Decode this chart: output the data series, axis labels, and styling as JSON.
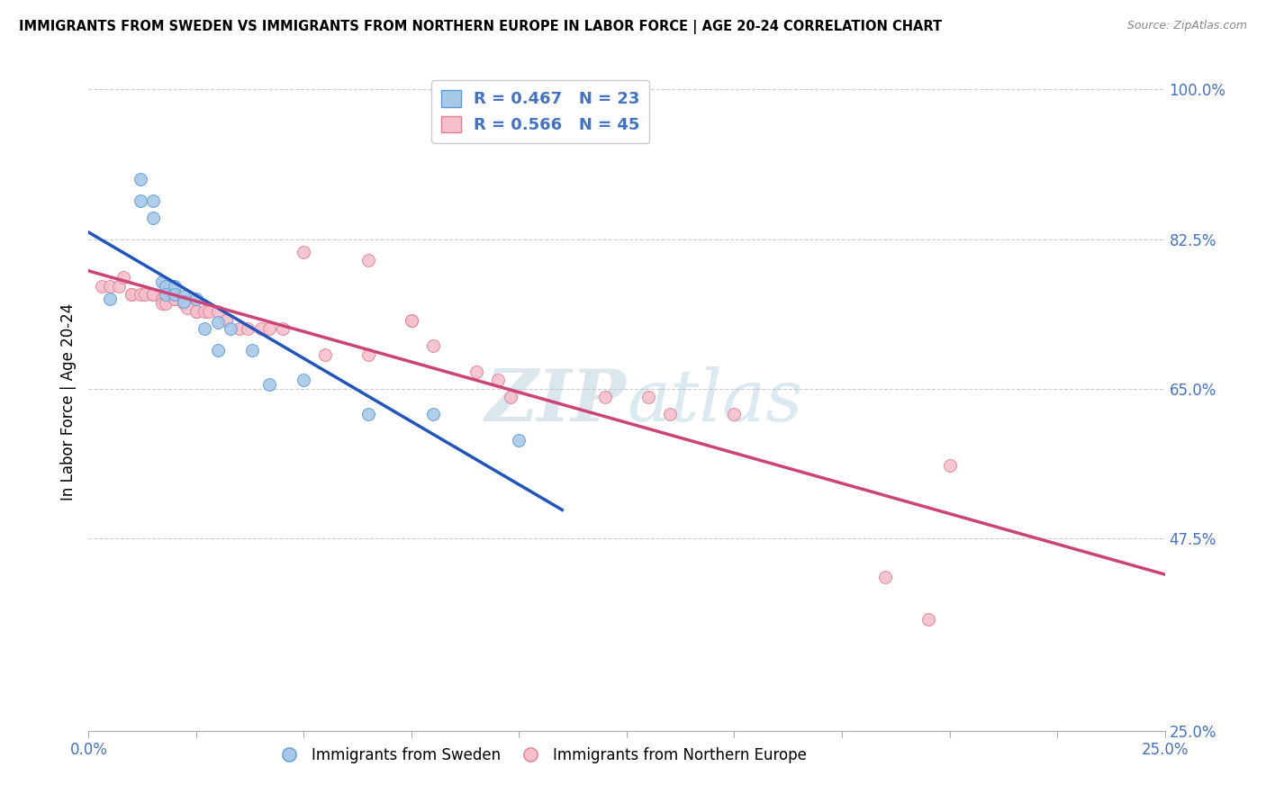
{
  "title": "IMMIGRANTS FROM SWEDEN VS IMMIGRANTS FROM NORTHERN EUROPE IN LABOR FORCE | AGE 20-24 CORRELATION CHART",
  "source": "Source: ZipAtlas.com",
  "ylabel": "In Labor Force | Age 20-24",
  "xlim": [
    0.0,
    0.25
  ],
  "ylim": [
    0.25,
    1.02
  ],
  "yticks": [
    0.25,
    0.475,
    0.65,
    0.825,
    1.0
  ],
  "ytick_labels": [
    "25.0%",
    "47.5%",
    "65.0%",
    "82.5%",
    "100.0%"
  ],
  "xticks": [
    0.0,
    0.025,
    0.05,
    0.075,
    0.1,
    0.125,
    0.15,
    0.175,
    0.2,
    0.225,
    0.25
  ],
  "xtick_labels": [
    "0.0%",
    "",
    "",
    "",
    "",
    "",
    "",
    "",
    "",
    "",
    "25.0%"
  ],
  "sweden_color": "#a8c8e8",
  "sweden_edge_color": "#5b9bd5",
  "northern_europe_color": "#f5c0cc",
  "northern_europe_edge_color": "#e08090",
  "trendline_sweden_color": "#2255bb",
  "trendline_northern_europe_color": "#cc4477",
  "R_sweden": 0.467,
  "N_sweden": 23,
  "R_northern": 0.566,
  "N_northern": 45,
  "watermark_zip": "ZIP",
  "watermark_atlas": "atlas",
  "marker_size": 100,
  "axis_color": "#4472c4",
  "sweden_x": [
    0.005,
    0.012,
    0.012,
    0.015,
    0.015,
    0.017,
    0.018,
    0.018,
    0.02,
    0.02,
    0.022,
    0.022,
    0.025,
    0.027,
    0.03,
    0.03,
    0.033,
    0.038,
    0.042,
    0.05,
    0.065,
    0.08,
    0.1
  ],
  "sweden_y": [
    0.755,
    0.87,
    0.895,
    0.87,
    0.85,
    0.775,
    0.77,
    0.76,
    0.77,
    0.76,
    0.758,
    0.752,
    0.755,
    0.72,
    0.728,
    0.695,
    0.72,
    0.695,
    0.655,
    0.66,
    0.62,
    0.62,
    0.59
  ],
  "northern_x": [
    0.003,
    0.005,
    0.007,
    0.008,
    0.01,
    0.01,
    0.012,
    0.013,
    0.015,
    0.015,
    0.017,
    0.017,
    0.018,
    0.02,
    0.02,
    0.022,
    0.023,
    0.025,
    0.025,
    0.027,
    0.028,
    0.03,
    0.032,
    0.035,
    0.037,
    0.04,
    0.042,
    0.045,
    0.05,
    0.055,
    0.065,
    0.065,
    0.075,
    0.075,
    0.08,
    0.09,
    0.095,
    0.098,
    0.12,
    0.13,
    0.135,
    0.15,
    0.185,
    0.195,
    0.2
  ],
  "northern_y": [
    0.77,
    0.77,
    0.77,
    0.78,
    0.76,
    0.76,
    0.76,
    0.76,
    0.76,
    0.76,
    0.755,
    0.75,
    0.75,
    0.755,
    0.755,
    0.75,
    0.745,
    0.74,
    0.74,
    0.74,
    0.74,
    0.74,
    0.73,
    0.72,
    0.72,
    0.72,
    0.72,
    0.72,
    0.81,
    0.69,
    0.8,
    0.69,
    0.73,
    0.73,
    0.7,
    0.67,
    0.66,
    0.64,
    0.64,
    0.64,
    0.62,
    0.62,
    0.43,
    0.38,
    0.56
  ]
}
